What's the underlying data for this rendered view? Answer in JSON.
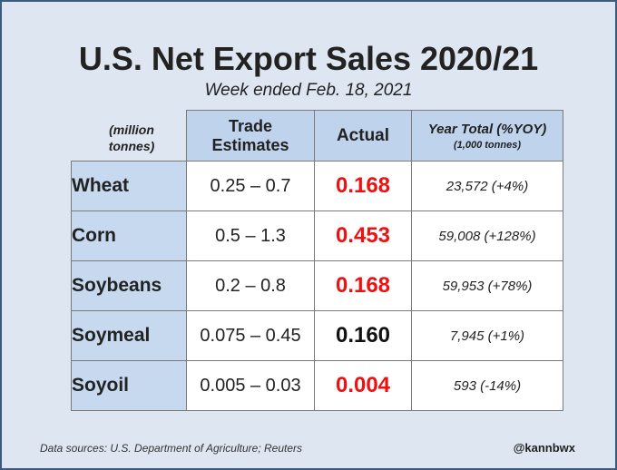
{
  "title": "U.S. Net Export Sales 2020/21",
  "subtitle": "Week ended Feb. 18, 2021",
  "unit_label_line1": "(million",
  "unit_label_line2": "tonnes)",
  "columns": {
    "trade_line1": "Trade",
    "trade_line2": "Estimates",
    "actual": "Actual",
    "year_total": "Year Total (%YOY)",
    "year_total_unit": "(1,000 tonnes)"
  },
  "rows": [
    {
      "crop": "Wheat",
      "trade": "0.25 – 0.7",
      "actual": "0.168",
      "year": "23,572 (+4%)"
    },
    {
      "crop": "Corn",
      "trade": "0.5 – 1.3",
      "actual": "0.453",
      "year": "59,008 (+128%)"
    },
    {
      "crop": "Soybeans",
      "trade": "0.2 – 0.8",
      "actual": "0.168",
      "year": "59,953 (+78%)"
    },
    {
      "crop": "Soymeal",
      "trade": "0.075 – 0.45",
      "actual": "0.160",
      "year": "7,945 (+1%)"
    },
    {
      "crop": "Soyoil",
      "trade": "0.005 – 0.03",
      "actual": "0.004",
      "year": "593 (-14%)"
    }
  ],
  "actual_colors": [
    "#ee1111",
    "#ee1111",
    "#ee1111",
    "#111111",
    "#ee1111"
  ],
  "footer": "Data sources: U.S. Department of Agriculture; Reuters",
  "handle": "@kannbwx"
}
